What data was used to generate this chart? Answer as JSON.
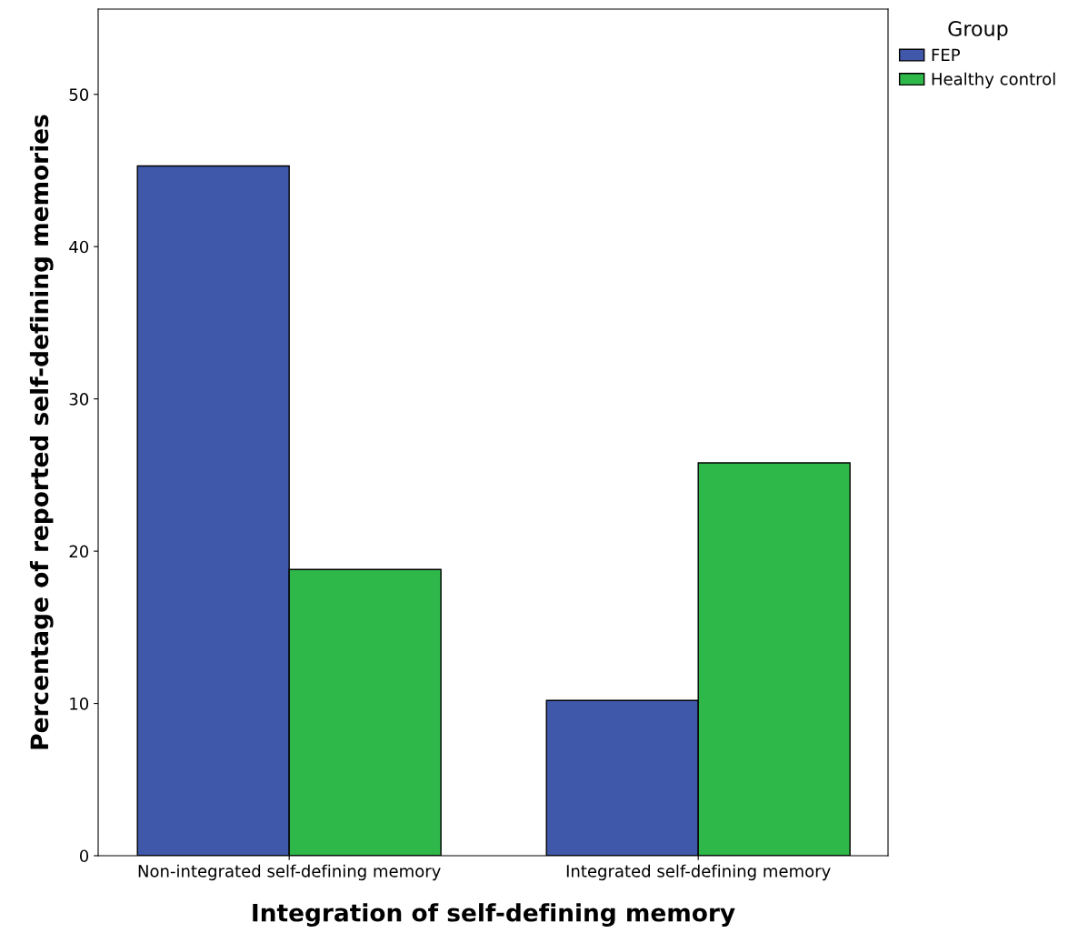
{
  "chart_data": {
    "type": "bar",
    "xlabel": "Integration of self-defining memory",
    "ylabel": "Percentage of reported self-defining memories",
    "categories": [
      "Non-integrated self-defining memory",
      "Integrated self-defining memory"
    ],
    "series": [
      {
        "name": "FEP",
        "color": "#3f58aa",
        "values": [
          45.3,
          10.2
        ]
      },
      {
        "name": "Healthy control",
        "color": "#2fb84a",
        "values": [
          18.8,
          25.8
        ]
      }
    ],
    "legend_title": "Group",
    "legend": "top right",
    "ylim": [
      0,
      55.6
    ],
    "yticks": [
      0,
      10,
      20,
      30,
      40,
      50
    ],
    "grid": false
  }
}
